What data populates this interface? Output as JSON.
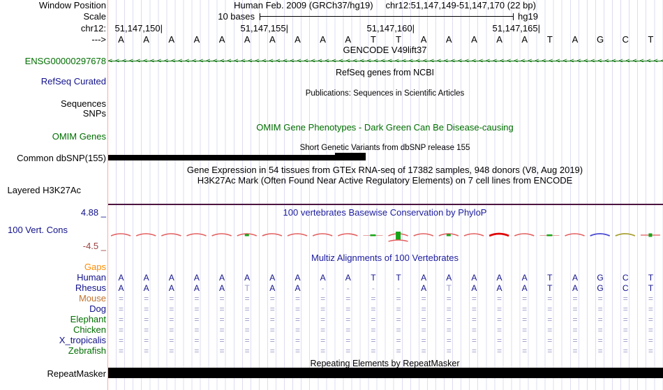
{
  "colors": {
    "navy": "#11118c",
    "green": "#006e00",
    "orange": "#ff8c00",
    "brown": "#c0722e",
    "dim": "#9b9bc9",
    "letter": "#11118c",
    "grid": "#dcdcf2",
    "boundary_pink": "#ffa8a8",
    "conservation_border": "#4d1440",
    "arc_red": "#e35b5b",
    "arc_bold_red": "#e00000",
    "arc_blue": "#4646d2",
    "arc_olive": "#a8a032",
    "mark_green": "#17a517"
  },
  "header": {
    "window_position_label": "Window Position",
    "title_left": "Human Feb. 2009 (GRCh37/hg19)",
    "title_right": "chr12:51,147,149-51,147,170 (22 bp)",
    "scale_label": "Scale",
    "scale_text": "10 bases",
    "assembly": "hg19",
    "chrom_label": "chr12:",
    "ruler_ticks": [
      "51,147,150|",
      "51,147,155|",
      "51,147,160|",
      "51,147,165|"
    ],
    "strand_label": "--->",
    "sequence": [
      "A",
      "A",
      "A",
      "A",
      "A",
      "A",
      "A",
      "A",
      "A",
      "A",
      "T",
      "T",
      "A",
      "A",
      "A",
      "A",
      "A",
      "T",
      "A",
      "G",
      "C",
      "T"
    ]
  },
  "tracks": {
    "gencode": {
      "title": "GENCODE V49lift37",
      "gene_id": "ENSG00000297678",
      "arrow_glyph": "<"
    },
    "refseq": {
      "title": "RefSeq genes from NCBI",
      "label": "RefSeq Curated"
    },
    "publications": {
      "title": "Publications: Sequences in Scientific Articles",
      "label_top": "Sequences",
      "label_bottom": "SNPs"
    },
    "omim": {
      "title": "OMIM Gene Phenotypes - Dark Green Can Be Disease-causing",
      "label": "OMIM Genes"
    },
    "dbsnp": {
      "title": "Short Genetic Variants from dbSNP release 155",
      "label": "Common dbSNP(155)"
    },
    "gtex": {
      "title": "Gene Expression in 54 tissues from GTEx RNA-seq of 17382 samples, 948 donors (V8, Aug 2019)"
    },
    "h3k27ac": {
      "title": "H3K27Ac Mark (Often Found Near Active Regulatory Elements) on 7 cell lines from ENCODE",
      "label": "Layered H3K27Ac"
    },
    "conservation": {
      "title": "100 vertebrates Basewise Conservation by PhyloP",
      "label": "100 Vert. Cons",
      "axis_max": "4.88 _",
      "axis_min": "-4.5 _",
      "marks": [
        {
          "col": 0,
          "type": "arc"
        },
        {
          "col": 1,
          "type": "arc"
        },
        {
          "col": 2,
          "type": "arc"
        },
        {
          "col": 3,
          "type": "arc"
        },
        {
          "col": 4,
          "type": "arc"
        },
        {
          "col": 5,
          "type": "arc_green"
        },
        {
          "col": 6,
          "type": "arc"
        },
        {
          "col": 7,
          "type": "arc"
        },
        {
          "col": 8,
          "type": "arc"
        },
        {
          "col": 9,
          "type": "arc"
        },
        {
          "col": 10,
          "type": "green_dash"
        },
        {
          "col": 11,
          "type": "arc_greenbox"
        },
        {
          "col": 12,
          "type": "arc"
        },
        {
          "col": 13,
          "type": "arc_green"
        },
        {
          "col": 14,
          "type": "arc"
        },
        {
          "col": 15,
          "type": "arc_bold"
        },
        {
          "col": 16,
          "type": "arc"
        },
        {
          "col": 17,
          "type": "green_dash"
        },
        {
          "col": 18,
          "type": "arc"
        },
        {
          "col": 19,
          "type": "arc_blue"
        },
        {
          "col": 20,
          "type": "arc_olive"
        },
        {
          "col": 21,
          "type": "line_green"
        }
      ]
    },
    "multiz": {
      "title": "Multiz Alignments of 100 Vertebrates",
      "rows": [
        {
          "name": "Gaps",
          "color": "#ff8c00",
          "cells": []
        },
        {
          "name": "Human",
          "color": "#11118c",
          "cells": [
            "A",
            "A",
            "A",
            "A",
            "A",
            "A",
            "A",
            "A",
            "A",
            "A",
            "T",
            "T",
            "A",
            "A",
            "A",
            "A",
            "A",
            "T",
            "A",
            "G",
            "C",
            "T"
          ]
        },
        {
          "name": "Rhesus",
          "color": "#11118c",
          "dim_cols": [
            5,
            13
          ],
          "cells": [
            "A",
            "A",
            "A",
            "A",
            "A",
            "T",
            "A",
            "A",
            "-",
            "-",
            "-",
            "-",
            "A",
            "T",
            "A",
            "A",
            "A",
            "T",
            "A",
            "G",
            "C",
            "T"
          ]
        },
        {
          "name": "Mouse",
          "color": "#c0722e",
          "fill": "="
        },
        {
          "name": "Dog",
          "color": "#11118c",
          "fill": "="
        },
        {
          "name": "Elephant",
          "color": "#006e00",
          "fill": "="
        },
        {
          "name": "Chicken",
          "color": "#006e00",
          "fill": "="
        },
        {
          "name": "X_tropicalis",
          "color": "#11118c",
          "fill": "="
        },
        {
          "name": "Zebrafish",
          "color": "#006e00",
          "fill": "="
        }
      ]
    },
    "repeatmasker": {
      "title": "Repeating Elements by RepeatMasker",
      "label": "RepeatMasker"
    }
  }
}
